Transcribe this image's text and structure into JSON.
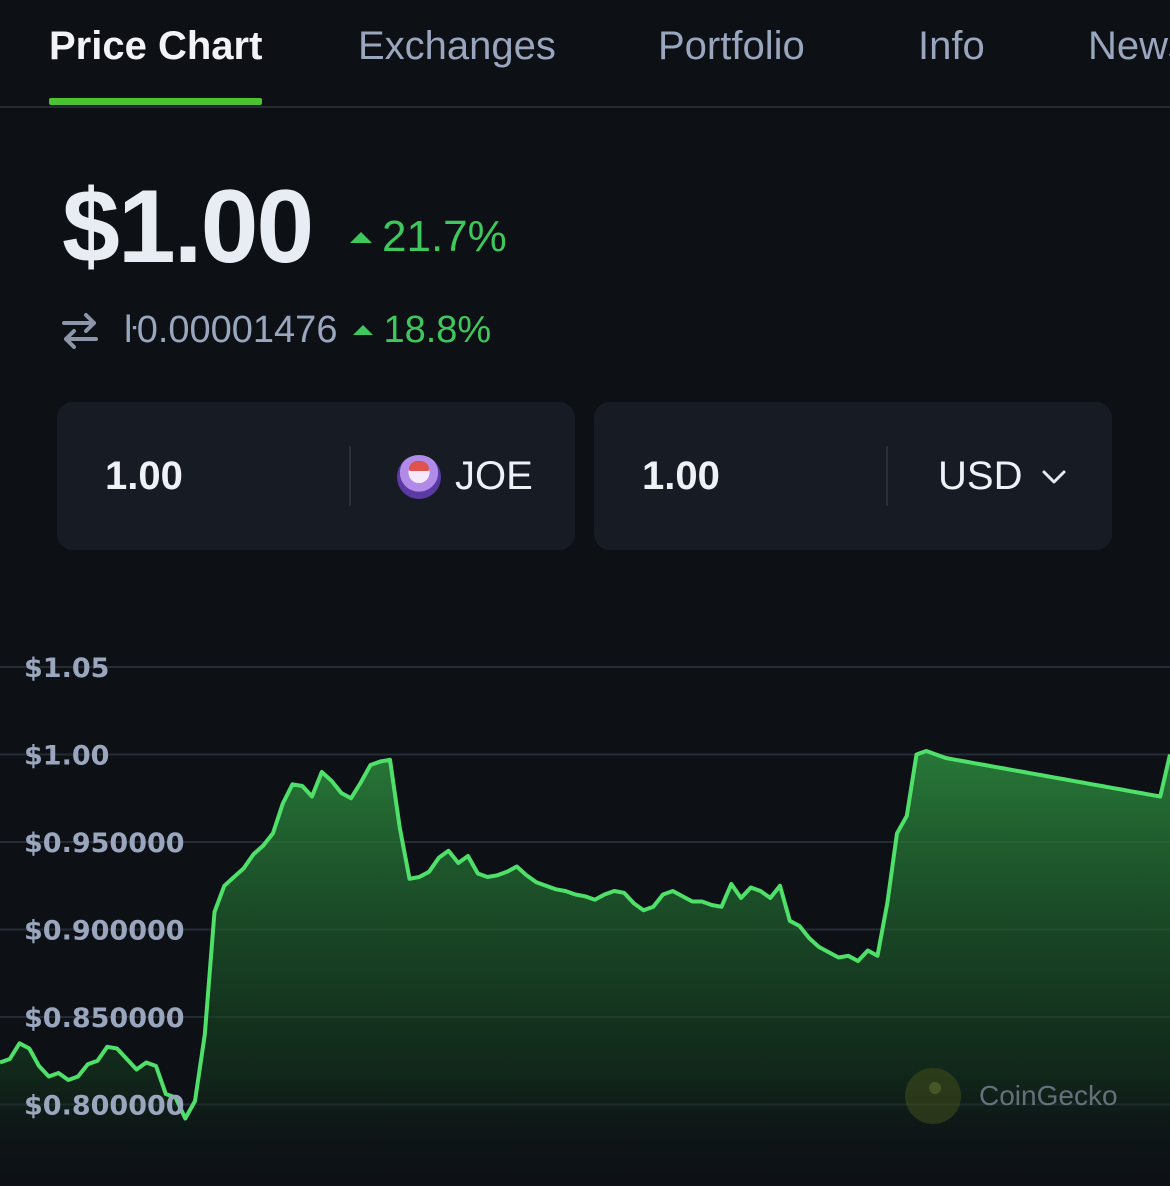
{
  "tabs": [
    {
      "label": "Price Chart",
      "active": true
    },
    {
      "label": "Exchanges",
      "active": false
    },
    {
      "label": "Portfolio",
      "active": false
    },
    {
      "label": "Info",
      "active": false
    },
    {
      "label": "News",
      "active": false
    }
  ],
  "price": {
    "usd": "$1.00",
    "usd_change": "21.7%",
    "btc": "ŀ0.00001476",
    "btc_change": "18.8%"
  },
  "converter": {
    "from_value": "1.00",
    "from_unit": "JOE",
    "to_value": "1.00",
    "to_unit": "USD"
  },
  "colors": {
    "accent": "#4cc430",
    "up": "#3ec85b",
    "line": "#4fe06a",
    "background": "#0d1116",
    "card": "#171c24"
  },
  "icons": {
    "swap": "swap-arrows-icon",
    "up": "triangle-up-icon",
    "dropdown": "chevron-down-icon",
    "token": "joe-token-icon",
    "watermark": "coingecko-logo"
  },
  "watermark": "CoinGecko",
  "chart_data": {
    "type": "area",
    "y_ticks": [
      "$1.05",
      "$1.00",
      "$0.950000",
      "$0.900000",
      "$0.850000",
      "$0.800000"
    ],
    "y_tick_values": [
      1.05,
      1.0,
      0.95,
      0.9,
      0.85,
      0.8
    ],
    "ylim": [
      0.788,
      1.055
    ],
    "grid": true,
    "x": [
      0,
      1,
      2,
      3,
      4,
      5,
      6,
      7,
      8,
      9,
      10,
      11,
      12,
      13,
      14,
      15,
      16,
      17,
      18,
      19,
      20,
      21,
      22,
      23,
      24,
      25,
      26,
      27,
      28,
      29,
      30,
      31,
      32,
      33,
      34,
      35,
      36,
      37,
      38,
      39,
      40,
      41,
      42,
      43,
      44,
      45,
      46,
      47,
      48,
      49,
      50,
      51,
      52,
      53,
      54,
      55,
      56,
      57,
      58,
      59,
      60,
      61,
      62,
      63,
      64,
      65,
      66,
      67,
      68,
      69,
      70,
      71,
      72,
      73,
      74,
      75,
      76,
      77,
      78,
      79,
      80,
      81,
      82,
      83,
      84,
      85,
      86,
      87,
      88,
      89,
      90,
      91,
      92,
      93,
      94,
      95,
      96,
      97,
      98,
      99,
      100,
      101,
      102,
      103,
      104,
      105,
      106,
      107,
      108,
      109,
      110,
      111,
      112,
      113,
      114,
      115,
      116,
      117,
      118,
      119,
      120
    ],
    "values": [
      0.824,
      0.826,
      0.835,
      0.832,
      0.822,
      0.816,
      0.818,
      0.814,
      0.816,
      0.823,
      0.825,
      0.833,
      0.832,
      0.826,
      0.82,
      0.824,
      0.822,
      0.806,
      0.804,
      0.792,
      0.802,
      0.84,
      0.91,
      0.925,
      0.93,
      0.935,
      0.943,
      0.948,
      0.955,
      0.972,
      0.983,
      0.982,
      0.976,
      0.99,
      0.985,
      0.978,
      0.975,
      0.984,
      0.994,
      0.996,
      0.997,
      0.958,
      0.929,
      0.93,
      0.933,
      0.941,
      0.945,
      0.938,
      0.942,
      0.932,
      0.93,
      0.931,
      0.933,
      0.936,
      0.931,
      0.927,
      0.925,
      0.923,
      0.922,
      0.92,
      0.919,
      0.917,
      0.92,
      0.922,
      0.921,
      0.915,
      0.911,
      0.913,
      0.92,
      0.922,
      0.919,
      0.916,
      0.916,
      0.914,
      0.913,
      0.926,
      0.918,
      0.924,
      0.922,
      0.918,
      0.925,
      0.905,
      0.902,
      0.895,
      0.89,
      0.887,
      0.884,
      0.885,
      0.882,
      0.888,
      0.885,
      0.915,
      0.955,
      0.965,
      1.0,
      1.002,
      1.0,
      0.998,
      0.997,
      0.996,
      0.995,
      0.994,
      0.993,
      0.992,
      0.991,
      0.99,
      0.989,
      0.988,
      0.987,
      0.986,
      0.985,
      0.984,
      0.983,
      0.982,
      0.981,
      0.98,
      0.979,
      0.978,
      0.977,
      0.976,
      1.0
    ]
  }
}
